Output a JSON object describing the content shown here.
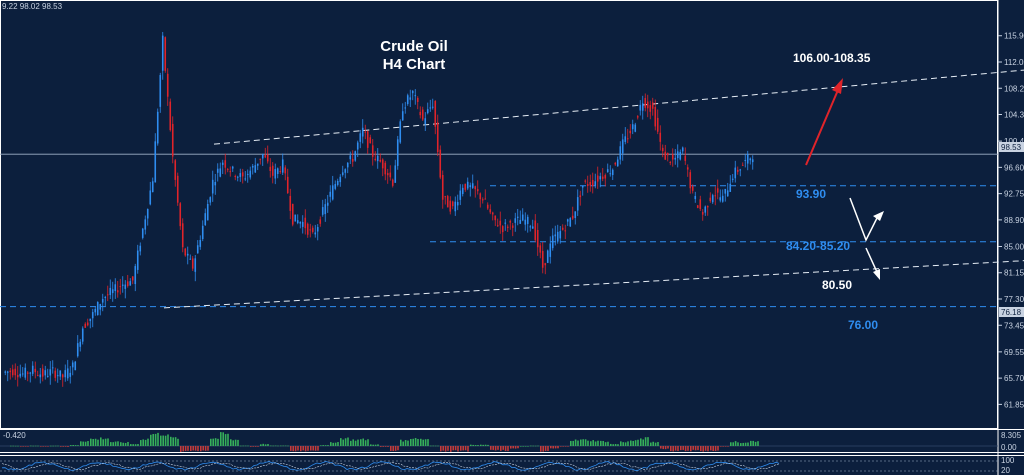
{
  "header": {
    "ohlc_text": "9.22 98.02 98.53"
  },
  "chart_data": {
    "type": "candlestick",
    "title": "Crude Oil",
    "subtitle": "H4 Chart",
    "y_ticks": [
      "115.90",
      "112.05",
      "108.20",
      "104.35",
      "100.45",
      "96.60",
      "92.75",
      "88.90",
      "85.00",
      "81.15",
      "77.30",
      "73.45",
      "69.55",
      "65.70",
      "61.85"
    ],
    "ylim": [
      60.0,
      118.5
    ],
    "current_price": {
      "label": "98.53",
      "value": 98.53
    },
    "marker_price": {
      "label": "76.18",
      "value": 76.18
    },
    "annotations": [
      {
        "label": "106.00-108.35",
        "color": "white"
      },
      {
        "label": "93.90",
        "color": "blue",
        "value": 93.9
      },
      {
        "label": "84.20-85.20",
        "color": "blue",
        "value": 85.7
      },
      {
        "label": "80.50",
        "color": "white"
      },
      {
        "label": "76.00",
        "color": "blue",
        "value": 76.18
      }
    ],
    "upper_channel": [
      {
        "i": 21,
        "v": 100.0
      },
      {
        "i": 103,
        "v": 111.0
      }
    ],
    "lower_channel": [
      {
        "i": 16,
        "v": 76.0
      },
      {
        "i": 103,
        "v": 83.0
      }
    ],
    "closes": [
      66.5,
      66.8,
      66.3,
      66.9,
      66.2,
      66.7,
      65.9,
      67.4,
      73.2,
      75.0,
      77.5,
      78.4,
      79.5,
      80.0,
      87.5,
      95.0,
      115.2,
      98.0,
      84.5,
      82.0,
      88.0,
      94.5,
      97.5,
      96.0,
      95.0,
      96.5,
      98.5,
      95.5,
      97.0,
      89.0,
      88.5,
      86.5,
      90.0,
      93.5,
      96.5,
      98.0,
      102.0,
      98.5,
      97.0,
      94.5,
      105.5,
      107.5,
      103.5,
      106.0,
      92.0,
      90.5,
      94.0,
      93.5,
      92.0,
      89.0,
      87.8,
      88.5,
      89.0,
      88.2,
      82.0,
      86.0,
      87.5,
      89.5,
      94.0,
      94.5,
      95.5,
      96.5,
      100.0,
      102.5,
      106.5,
      105.0,
      98.5,
      97.5,
      99.0,
      92.5,
      89.8,
      93.0,
      92.0,
      95.5,
      97.0,
      98.53
    ],
    "oscillator": {
      "label": "-0.420",
      "y_ticks": [
        "8.305",
        "0.00"
      ]
    },
    "sub_indicator": {
      "y_ticks": [
        "100",
        "20"
      ]
    }
  }
}
